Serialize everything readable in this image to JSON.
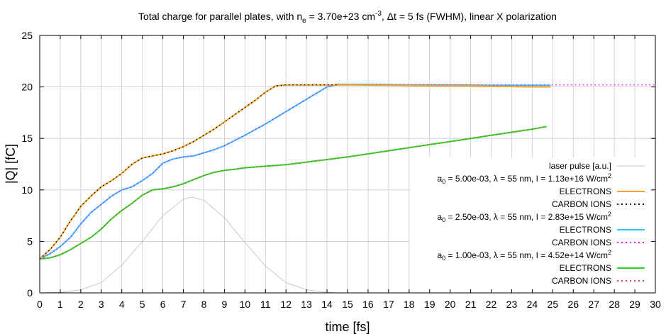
{
  "chart_data": {
    "type": "line",
    "title": {
      "prefix": "Total charge for parallel plates, with n",
      "sub": "e",
      "mid1": " = 3.70e+23 cm",
      "sup": "-3",
      "mid2": ", Δt = 5 fs (FWHM), linear X polarization"
    },
    "xlabel": "time [fs]",
    "ylabel": "|Q| [fC]",
    "xlim": [
      0,
      30
    ],
    "ylim": [
      0,
      25
    ],
    "xticks": [
      0,
      1,
      2,
      3,
      4,
      5,
      6,
      7,
      8,
      9,
      10,
      11,
      12,
      13,
      14,
      15,
      16,
      17,
      18,
      19,
      20,
      21,
      22,
      23,
      24,
      25,
      26,
      27,
      28,
      29,
      30
    ],
    "yticks": [
      0,
      5,
      10,
      15,
      20,
      25
    ],
    "grid": true,
    "legend_position": "right",
    "colors": {
      "a1": "#f5a623",
      "a2": "#29c8f8",
      "a3": "#22dd22",
      "carbon1": "#000000",
      "carbon2": "#ff00ff",
      "carbon3": "#d44040",
      "laser": "#c8c8c8"
    },
    "legend": {
      "laser": "laser pulse [a.u.]",
      "groups": [
        {
          "a0_val": " = 5.00e-03, λ = 55 nm, I = 1.13e+16 W/cm",
          "electrons": "ELECTRONS",
          "carbon": "CARBON IONS"
        },
        {
          "a0_val": " = 2.50e-03, λ = 55 nm, I = 2.83e+15 W/cm",
          "electrons": "ELECTRONS",
          "carbon": "CARBON IONS"
        },
        {
          "a0_val": " = 1.00e-03, λ = 55 nm, I = 4.52e+14 W/cm",
          "electrons": "ELECTRONS",
          "carbon": "CARBON IONS"
        }
      ],
      "a0_prefix": "a",
      "a0_sub": "0",
      "sup2": "2"
    },
    "series": [
      {
        "key": "a1_electrons",
        "points": [
          [
            0,
            3.3
          ],
          [
            0.5,
            4.2
          ],
          [
            1,
            5.4
          ],
          [
            1.5,
            7.0
          ],
          [
            2,
            8.4
          ],
          [
            2.5,
            9.4
          ],
          [
            3,
            10.3
          ],
          [
            3.5,
            10.9
          ],
          [
            4,
            11.6
          ],
          [
            4.5,
            12.5
          ],
          [
            5,
            13.1
          ],
          [
            5.5,
            13.3
          ],
          [
            6,
            13.5
          ],
          [
            6.5,
            13.8
          ],
          [
            7,
            14.2
          ],
          [
            7.5,
            14.7
          ],
          [
            8,
            15.3
          ],
          [
            8.5,
            15.9
          ],
          [
            9,
            16.6
          ],
          [
            9.5,
            17.3
          ],
          [
            10,
            18.0
          ],
          [
            10.5,
            18.7
          ],
          [
            11,
            19.5
          ],
          [
            11.5,
            20.1
          ],
          [
            12,
            20.2
          ],
          [
            13,
            20.2
          ],
          [
            14,
            20.2
          ],
          [
            15,
            20.2
          ],
          [
            17,
            20.15
          ],
          [
            19,
            20.1
          ],
          [
            21,
            20.1
          ],
          [
            22.5,
            20.05
          ],
          [
            24,
            20.0
          ],
          [
            24.9,
            20.0
          ]
        ]
      },
      {
        "key": "a1_carbon",
        "points": [
          [
            0,
            3.3
          ],
          [
            0.5,
            4.2
          ],
          [
            1,
            5.4
          ],
          [
            1.5,
            7.0
          ],
          [
            2,
            8.4
          ],
          [
            2.5,
            9.4
          ],
          [
            3,
            10.3
          ],
          [
            3.5,
            10.9
          ],
          [
            4,
            11.6
          ],
          [
            4.5,
            12.5
          ],
          [
            5,
            13.1
          ],
          [
            5.5,
            13.3
          ],
          [
            6,
            13.5
          ],
          [
            6.5,
            13.8
          ],
          [
            7,
            14.2
          ],
          [
            7.5,
            14.7
          ],
          [
            8,
            15.3
          ],
          [
            8.5,
            15.9
          ],
          [
            9,
            16.6
          ],
          [
            9.5,
            17.3
          ],
          [
            10,
            18.0
          ],
          [
            10.5,
            18.7
          ],
          [
            11,
            19.5
          ],
          [
            11.5,
            20.1
          ],
          [
            12,
            20.2
          ],
          [
            13,
            20.2
          ],
          [
            14,
            20.2
          ],
          [
            14.5,
            20.2
          ]
        ]
      },
      {
        "key": "a2_electrons",
        "points": [
          [
            0,
            3.3
          ],
          [
            0.5,
            3.8
          ],
          [
            1,
            4.5
          ],
          [
            1.5,
            5.4
          ],
          [
            2,
            6.7
          ],
          [
            2.5,
            7.8
          ],
          [
            3,
            8.6
          ],
          [
            3.5,
            9.4
          ],
          [
            4,
            10.0
          ],
          [
            4.5,
            10.3
          ],
          [
            5,
            10.9
          ],
          [
            5.5,
            11.6
          ],
          [
            6,
            12.6
          ],
          [
            6.5,
            13.0
          ],
          [
            7,
            13.2
          ],
          [
            7.5,
            13.3
          ],
          [
            8,
            13.6
          ],
          [
            8.5,
            13.9
          ],
          [
            9,
            14.3
          ],
          [
            9.5,
            14.8
          ],
          [
            10,
            15.3
          ],
          [
            11,
            16.4
          ],
          [
            12,
            17.6
          ],
          [
            13,
            18.8
          ],
          [
            14,
            20.0
          ],
          [
            14.5,
            20.25
          ],
          [
            16,
            20.25
          ],
          [
            18,
            20.2
          ],
          [
            20,
            20.2
          ],
          [
            22,
            20.15
          ],
          [
            23,
            20.15
          ],
          [
            24.9,
            20.15
          ]
        ]
      },
      {
        "key": "a2_carbon",
        "points": [
          [
            0,
            3.3
          ],
          [
            0.5,
            3.8
          ],
          [
            1,
            4.5
          ],
          [
            1.5,
            5.4
          ],
          [
            2,
            6.7
          ],
          [
            2.5,
            7.8
          ],
          [
            3,
            8.6
          ],
          [
            3.5,
            9.4
          ],
          [
            4,
            10.0
          ],
          [
            4.5,
            10.3
          ],
          [
            5,
            10.9
          ],
          [
            5.5,
            11.6
          ],
          [
            6,
            12.6
          ],
          [
            6.5,
            13.0
          ],
          [
            7,
            13.2
          ],
          [
            7.5,
            13.3
          ],
          [
            8,
            13.6
          ],
          [
            8.5,
            13.9
          ],
          [
            9,
            14.3
          ],
          [
            9.5,
            14.8
          ],
          [
            10,
            15.3
          ],
          [
            11,
            16.4
          ],
          [
            12,
            17.6
          ],
          [
            13,
            18.8
          ],
          [
            14,
            20.0
          ],
          [
            14.5,
            20.25
          ],
          [
            16,
            20.25
          ],
          [
            20,
            20.2
          ],
          [
            25,
            20.2
          ],
          [
            30,
            20.2
          ]
        ]
      },
      {
        "key": "a3_electrons",
        "points": [
          [
            0,
            3.3
          ],
          [
            0.5,
            3.4
          ],
          [
            1,
            3.7
          ],
          [
            1.5,
            4.2
          ],
          [
            2,
            4.8
          ],
          [
            2.5,
            5.4
          ],
          [
            3,
            6.2
          ],
          [
            3.5,
            7.2
          ],
          [
            4,
            8.0
          ],
          [
            4.5,
            8.7
          ],
          [
            5,
            9.5
          ],
          [
            5.5,
            10.0
          ],
          [
            6,
            10.1
          ],
          [
            6.5,
            10.3
          ],
          [
            7,
            10.6
          ],
          [
            7.5,
            11.0
          ],
          [
            8,
            11.4
          ],
          [
            8.5,
            11.7
          ],
          [
            9,
            11.9
          ],
          [
            9.5,
            12.0
          ],
          [
            10,
            12.15
          ],
          [
            11,
            12.3
          ],
          [
            12,
            12.45
          ],
          [
            13,
            12.7
          ],
          [
            14,
            12.95
          ],
          [
            15,
            13.2
          ],
          [
            16,
            13.5
          ],
          [
            17,
            13.8
          ],
          [
            18,
            14.1
          ],
          [
            19,
            14.4
          ],
          [
            20,
            14.7
          ],
          [
            21,
            15.0
          ],
          [
            22,
            15.3
          ],
          [
            23,
            15.6
          ],
          [
            24,
            15.9
          ],
          [
            24.7,
            16.15
          ]
        ]
      },
      {
        "key": "a3_carbon",
        "points": [
          [
            0,
            3.3
          ],
          [
            0.5,
            3.4
          ],
          [
            1,
            3.7
          ],
          [
            1.5,
            4.2
          ],
          [
            2,
            4.8
          ],
          [
            2.5,
            5.4
          ],
          [
            3,
            6.2
          ],
          [
            3.5,
            7.2
          ],
          [
            4,
            8.0
          ],
          [
            4.5,
            8.7
          ],
          [
            5,
            9.5
          ],
          [
            5.5,
            10.0
          ],
          [
            6,
            10.1
          ],
          [
            6.5,
            10.3
          ],
          [
            7,
            10.6
          ],
          [
            7.5,
            11.0
          ],
          [
            8,
            11.4
          ],
          [
            8.5,
            11.7
          ],
          [
            9,
            11.9
          ],
          [
            9.5,
            12.0
          ],
          [
            10,
            12.15
          ],
          [
            11,
            12.3
          ],
          [
            12,
            12.45
          ],
          [
            13,
            12.7
          ],
          [
            14,
            12.95
          ],
          [
            15,
            13.2
          ],
          [
            16,
            13.5
          ],
          [
            17,
            13.8
          ],
          [
            18,
            14.1
          ],
          [
            19,
            14.4
          ],
          [
            20,
            14.7
          ],
          [
            21,
            15.0
          ],
          [
            22,
            15.3
          ],
          [
            23,
            15.6
          ],
          [
            24,
            15.9
          ],
          [
            24.7,
            16.15
          ]
        ]
      },
      {
        "key": "laser",
        "points": [
          [
            0,
            0
          ],
          [
            1,
            0.05
          ],
          [
            2,
            0.3
          ],
          [
            3,
            1.0
          ],
          [
            4,
            2.7
          ],
          [
            5,
            5.0
          ],
          [
            6,
            7.5
          ],
          [
            7,
            9.1
          ],
          [
            7.4,
            9.3
          ],
          [
            8,
            9.0
          ],
          [
            9,
            7.3
          ],
          [
            10,
            4.9
          ],
          [
            11,
            2.6
          ],
          [
            12,
            1.0
          ],
          [
            13,
            0.3
          ],
          [
            14,
            0.05
          ],
          [
            14.5,
            0
          ]
        ]
      }
    ]
  }
}
